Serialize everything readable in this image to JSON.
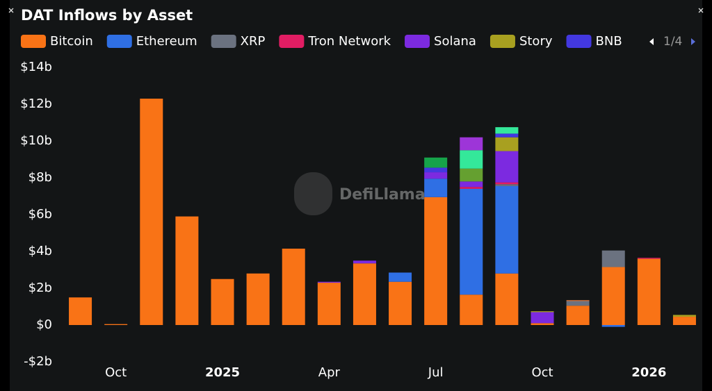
{
  "chart_data": {
    "type": "bar",
    "stacked": true,
    "title": "DAT Inflows by Asset",
    "legend_page": "1/4",
    "watermark": "DefiLlama",
    "categories": [
      null,
      "Oct",
      null,
      null,
      "2025",
      null,
      null,
      "Apr",
      null,
      null,
      "Jul",
      null,
      null,
      "Oct",
      null,
      null,
      "2026",
      null
    ],
    "ylim": [
      -2,
      14
    ],
    "yticks": [
      {
        "value": -2,
        "label": "-$2b"
      },
      {
        "value": 0,
        "label": "$0"
      },
      {
        "value": 2,
        "label": "$2b"
      },
      {
        "value": 4,
        "label": "$4b"
      },
      {
        "value": 6,
        "label": "$6b"
      },
      {
        "value": 8,
        "label": "$8b"
      },
      {
        "value": 10,
        "label": "$10b"
      },
      {
        "value": 12,
        "label": "$12b"
      },
      {
        "value": 14,
        "label": "$14b"
      }
    ],
    "grid": false,
    "series": [
      {
        "name": "Bitcoin",
        "color": "#f97316",
        "values": [
          1.5,
          0.05,
          12.3,
          5.9,
          2.5,
          2.8,
          4.15,
          2.3,
          3.35,
          2.35,
          6.95,
          1.65,
          2.8,
          0.1,
          1.05,
          3.15,
          3.6,
          0.45
        ]
      },
      {
        "name": "Ethereum",
        "color": "#2f6fe4",
        "values": [
          0,
          0,
          0,
          0,
          0,
          0,
          0,
          0,
          0,
          0.5,
          1.0,
          5.75,
          4.75,
          0,
          0,
          -0.1,
          0,
          0
        ]
      },
      {
        "name": "XRP",
        "color": "#6b7280",
        "values": [
          0,
          0,
          0,
          0,
          0,
          0,
          0,
          0,
          0,
          0,
          0,
          0,
          0.1,
          0,
          0.25,
          0.9,
          0,
          0
        ]
      },
      {
        "name": "Tron Network",
        "color": "#e11d63",
        "values": [
          0,
          0,
          0,
          0,
          0,
          0,
          0,
          0,
          0,
          0,
          0,
          0.1,
          0.1,
          0,
          0,
          0,
          0.05,
          0
        ]
      },
      {
        "name": "Solana",
        "color": "#7c2ae0",
        "values": [
          0,
          0,
          0,
          0,
          0,
          0,
          0,
          0.05,
          0.15,
          0,
          0.35,
          0.3,
          1.7,
          0.6,
          0,
          0,
          0,
          0
        ]
      },
      {
        "name": "Story",
        "color": "#a8a020",
        "values": [
          0,
          0,
          0,
          0,
          0,
          0,
          0,
          0,
          0,
          0,
          0,
          0,
          0.75,
          0.05,
          0,
          0,
          0,
          0.1
        ]
      },
      {
        "name": "BNB",
        "color": "#4338e0",
        "values": [
          0,
          0,
          0,
          0,
          0,
          0,
          0,
          0,
          0,
          0,
          0.25,
          0,
          0.2,
          0,
          0,
          0,
          0,
          0
        ]
      },
      {
        "color": "#e0773a",
        "values": [
          0,
          0,
          0,
          0,
          0,
          0,
          0,
          0,
          0,
          0,
          0,
          0,
          0,
          0,
          0.05,
          0,
          0,
          0
        ]
      },
      {
        "color": "#16a34a",
        "values": [
          0,
          0,
          0,
          0,
          0,
          0,
          0,
          0,
          0,
          0,
          0.55,
          0,
          0,
          0,
          0,
          0,
          0,
          0
        ]
      },
      {
        "color": "#65a030",
        "values": [
          0,
          0,
          0,
          0,
          0,
          0,
          0,
          0,
          0,
          0,
          0,
          0.7,
          0,
          0,
          0,
          0,
          0,
          0
        ]
      },
      {
        "color": "#34e89a",
        "values": [
          0,
          0,
          0,
          0,
          0,
          0,
          0,
          0,
          0,
          0,
          0,
          1.0,
          0.35,
          0,
          0,
          0,
          0,
          0
        ]
      },
      {
        "color": "#9d35d8",
        "values": [
          0,
          0,
          0,
          0,
          0,
          0,
          0,
          0,
          0,
          0,
          0,
          0.7,
          0,
          0,
          0,
          0,
          0,
          0
        ]
      }
    ]
  }
}
